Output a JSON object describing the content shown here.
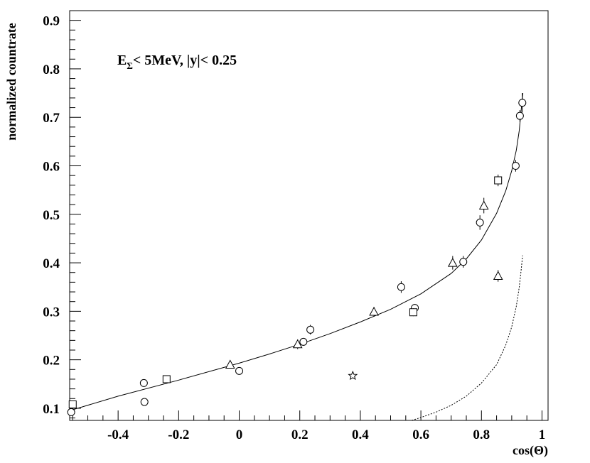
{
  "chart_data": {
    "type": "scatter",
    "title": "",
    "xlabel": "cos(Θ)",
    "ylabel": "normalized countrate",
    "xlim": [
      -0.56,
      1.02
    ],
    "ylim": [
      0.075,
      0.92
    ],
    "x_ticks": [
      -0.4,
      -0.2,
      0,
      0.2,
      0.4,
      0.6,
      0.8,
      1
    ],
    "x_tick_labels": [
      "-0.4",
      "-0.2",
      "0",
      "0.2",
      "0.4",
      "0.6",
      "0.8",
      "1"
    ],
    "y_ticks": [
      0.1,
      0.2,
      0.3,
      0.4,
      0.5,
      0.6,
      0.7,
      0.8,
      0.9
    ],
    "y_tick_labels": [
      "0.1",
      "0.2",
      "0.3",
      "0.4",
      "0.5",
      "0.6",
      "0.7",
      "0.8",
      "0.9"
    ],
    "grid": false,
    "annotation": {
      "e": "E",
      "sub": "Σ",
      "rest": "< 5MeV, |y|< 0.25"
    },
    "series": [
      {
        "marker": "circle",
        "points": [
          {
            "x": -0.555,
            "y": 0.092,
            "err": 0.004
          },
          {
            "x": -0.315,
            "y": 0.152,
            "err": 0.004
          },
          {
            "x": -0.313,
            "y": 0.113,
            "err": 0.004
          },
          {
            "x": 0.0,
            "y": 0.177,
            "err": 0.004
          },
          {
            "x": 0.212,
            "y": 0.237,
            "err": 0.008
          },
          {
            "x": 0.235,
            "y": 0.262,
            "err": 0.01
          },
          {
            "x": 0.535,
            "y": 0.35,
            "err": 0.012
          },
          {
            "x": 0.58,
            "y": 0.307,
            "err": 0.008
          },
          {
            "x": 0.74,
            "y": 0.402,
            "err": 0.012
          },
          {
            "x": 0.795,
            "y": 0.483,
            "err": 0.015
          },
          {
            "x": 0.913,
            "y": 0.6,
            "err": 0.012
          },
          {
            "x": 0.927,
            "y": 0.703,
            "err": 0.012
          },
          {
            "x": 0.935,
            "y": 0.73,
            "err": 0.02
          }
        ]
      },
      {
        "marker": "square",
        "points": [
          {
            "x": -0.55,
            "y": 0.108,
            "err": 0.004
          },
          {
            "x": -0.24,
            "y": 0.16,
            "err": 0.004
          },
          {
            "x": 0.575,
            "y": 0.298,
            "err": 0.008
          },
          {
            "x": 0.855,
            "y": 0.57,
            "err": 0.012
          }
        ]
      },
      {
        "marker": "triangle",
        "points": [
          {
            "x": -0.03,
            "y": 0.19,
            "err": 0.004
          },
          {
            "x": 0.193,
            "y": 0.232,
            "err": 0.01
          },
          {
            "x": 0.445,
            "y": 0.299,
            "err": 0.01
          },
          {
            "x": 0.705,
            "y": 0.4,
            "err": 0.014
          },
          {
            "x": 0.808,
            "y": 0.518,
            "err": 0.016
          },
          {
            "x": 0.855,
            "y": 0.373,
            "err": 0.012
          }
        ]
      },
      {
        "marker": "star",
        "points": [
          {
            "x": 0.375,
            "y": 0.167,
            "err": 0
          }
        ]
      }
    ],
    "curves": [
      {
        "style": "solid",
        "points": [
          [
            -0.56,
            0.095
          ],
          [
            -0.4,
            0.125
          ],
          [
            -0.2,
            0.158
          ],
          [
            0.0,
            0.193
          ],
          [
            0.1,
            0.212
          ],
          [
            0.2,
            0.232
          ],
          [
            0.3,
            0.254
          ],
          [
            0.4,
            0.278
          ],
          [
            0.5,
            0.304
          ],
          [
            0.6,
            0.336
          ],
          [
            0.7,
            0.378
          ],
          [
            0.75,
            0.408
          ],
          [
            0.8,
            0.447
          ],
          [
            0.85,
            0.502
          ],
          [
            0.88,
            0.548
          ],
          [
            0.9,
            0.59
          ],
          [
            0.915,
            0.632
          ],
          [
            0.925,
            0.673
          ],
          [
            0.932,
            0.72
          ],
          [
            0.937,
            0.75
          ]
        ]
      },
      {
        "style": "dotted",
        "points": [
          [
            0.57,
            0.075
          ],
          [
            0.6,
            0.081
          ],
          [
            0.65,
            0.092
          ],
          [
            0.7,
            0.106
          ],
          [
            0.75,
            0.125
          ],
          [
            0.8,
            0.152
          ],
          [
            0.85,
            0.19
          ],
          [
            0.88,
            0.23
          ],
          [
            0.9,
            0.268
          ],
          [
            0.915,
            0.31
          ],
          [
            0.925,
            0.35
          ],
          [
            0.932,
            0.39
          ],
          [
            0.936,
            0.415
          ]
        ]
      }
    ]
  }
}
